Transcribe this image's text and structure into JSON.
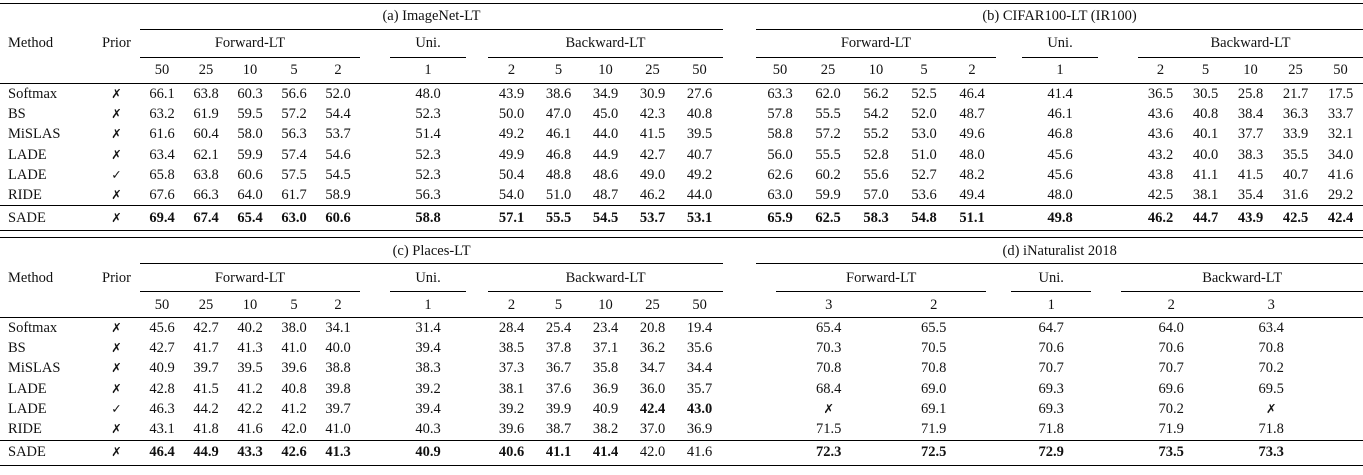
{
  "tables": [
    {
      "name": "top",
      "method_header": "Method",
      "prior_header": "Prior",
      "sections": [
        {
          "title": "(a) ImageNet-LT",
          "groups": [
            {
              "label": "Forward-LT",
              "subcols": [
                "50",
                "25",
                "10",
                "5",
                "2"
              ]
            },
            {
              "label": "Uni.",
              "subcols": [
                "1"
              ]
            },
            {
              "label": "Backward-LT",
              "subcols": [
                "2",
                "5",
                "10",
                "25",
                "50"
              ]
            }
          ]
        },
        {
          "title": "(b) CIFAR100-LT (IR100)",
          "groups": [
            {
              "label": "Forward-LT",
              "subcols": [
                "50",
                "25",
                "10",
                "5",
                "2"
              ]
            },
            {
              "label": "Uni.",
              "subcols": [
                "1"
              ]
            },
            {
              "label": "Backward-LT",
              "subcols": [
                "2",
                "5",
                "10",
                "25",
                "50"
              ]
            }
          ]
        }
      ],
      "rows": [
        {
          "method": "Softmax",
          "prior": "✗",
          "cells": [
            [
              "66.1",
              "63.8",
              "60.3",
              "56.6",
              "52.0",
              "48.0",
              "43.9",
              "38.6",
              "34.9",
              "30.9",
              "27.6"
            ],
            [
              "63.3",
              "62.0",
              "56.2",
              "52.5",
              "46.4",
              "41.4",
              "36.5",
              "30.5",
              "25.8",
              "21.7",
              "17.5"
            ]
          ],
          "bold": [
            [],
            []
          ]
        },
        {
          "method": "BS",
          "prior": "✗",
          "cells": [
            [
              "63.2",
              "61.9",
              "59.5",
              "57.2",
              "54.4",
              "52.3",
              "50.0",
              "47.0",
              "45.0",
              "42.3",
              "40.8"
            ],
            [
              "57.8",
              "55.5",
              "54.2",
              "52.0",
              "48.7",
              "46.1",
              "43.6",
              "40.8",
              "38.4",
              "36.3",
              "33.7"
            ]
          ],
          "bold": [
            [],
            []
          ]
        },
        {
          "method": "MiSLAS",
          "prior": "✗",
          "cells": [
            [
              "61.6",
              "60.4",
              "58.0",
              "56.3",
              "53.7",
              "51.4",
              "49.2",
              "46.1",
              "44.0",
              "41.5",
              "39.5"
            ],
            [
              "58.8",
              "57.2",
              "55.2",
              "53.0",
              "49.6",
              "46.8",
              "43.6",
              "40.1",
              "37.7",
              "33.9",
              "32.1"
            ]
          ],
          "bold": [
            [],
            []
          ]
        },
        {
          "method": "LADE",
          "prior": "✗",
          "cells": [
            [
              "63.4",
              "62.1",
              "59.9",
              "57.4",
              "54.6",
              "52.3",
              "49.9",
              "46.8",
              "44.9",
              "42.7",
              "40.7"
            ],
            [
              "56.0",
              "55.5",
              "52.8",
              "51.0",
              "48.0",
              "45.6",
              "43.2",
              "40.0",
              "38.3",
              "35.5",
              "34.0"
            ]
          ],
          "bold": [
            [],
            []
          ]
        },
        {
          "method": "LADE",
          "prior": "✓",
          "cells": [
            [
              "65.8",
              "63.8",
              "60.6",
              "57.5",
              "54.5",
              "52.3",
              "50.4",
              "48.8",
              "48.6",
              "49.0",
              "49.2"
            ],
            [
              "62.6",
              "60.2",
              "55.6",
              "52.7",
              "48.2",
              "45.6",
              "43.8",
              "41.1",
              "41.5",
              "40.7",
              "41.6"
            ]
          ],
          "bold": [
            [],
            []
          ]
        },
        {
          "method": "RIDE",
          "prior": "✗",
          "cells": [
            [
              "67.6",
              "66.3",
              "64.0",
              "61.7",
              "58.9",
              "56.3",
              "54.0",
              "51.0",
              "48.7",
              "46.2",
              "44.0"
            ],
            [
              "63.0",
              "59.9",
              "57.0",
              "53.6",
              "49.4",
              "48.0",
              "42.5",
              "38.1",
              "35.4",
              "31.6",
              "29.2"
            ]
          ],
          "bold": [
            [],
            []
          ]
        },
        {
          "method": "SADE",
          "prior": "✗",
          "footer": true,
          "cells": [
            [
              "69.4",
              "67.4",
              "65.4",
              "63.0",
              "60.6",
              "58.8",
              "57.1",
              "55.5",
              "54.5",
              "53.7",
              "53.1"
            ],
            [
              "65.9",
              "62.5",
              "58.3",
              "54.8",
              "51.1",
              "49.8",
              "46.2",
              "44.7",
              "43.9",
              "42.5",
              "42.4"
            ]
          ],
          "bold": [
            [
              0,
              1,
              2,
              3,
              4,
              5,
              6,
              7,
              8,
              9,
              10
            ],
            [
              0,
              1,
              2,
              3,
              4,
              5,
              6,
              7,
              8,
              9,
              10
            ]
          ]
        }
      ]
    },
    {
      "name": "bottom",
      "method_header": "Method",
      "prior_header": "Prior",
      "sections": [
        {
          "title": "(c) Places-LT",
          "groups": [
            {
              "label": "Forward-LT",
              "subcols": [
                "50",
                "25",
                "10",
                "5",
                "2"
              ]
            },
            {
              "label": "Uni.",
              "subcols": [
                "1"
              ]
            },
            {
              "label": "Backward-LT",
              "subcols": [
                "2",
                "5",
                "10",
                "25",
                "50"
              ]
            }
          ]
        },
        {
          "title": "(d) iNaturalist 2018",
          "groups": [
            {
              "label": "Forward-LT",
              "subcols": [
                "3",
                "2"
              ]
            },
            {
              "label": "Uni.",
              "subcols": [
                "1"
              ]
            },
            {
              "label": "Backward-LT",
              "subcols": [
                "2",
                "3"
              ]
            }
          ]
        }
      ],
      "rows": [
        {
          "method": "Softmax",
          "prior": "✗",
          "cells": [
            [
              "45.6",
              "42.7",
              "40.2",
              "38.0",
              "34.1",
              "31.4",
              "28.4",
              "25.4",
              "23.4",
              "20.8",
              "19.4"
            ],
            [
              "65.4",
              "65.5",
              "64.7",
              "64.0",
              "63.4"
            ]
          ],
          "bold": [
            [],
            []
          ]
        },
        {
          "method": "BS",
          "prior": "✗",
          "cells": [
            [
              "42.7",
              "41.7",
              "41.3",
              "41.0",
              "40.0",
              "39.4",
              "38.5",
              "37.8",
              "37.1",
              "36.2",
              "35.6"
            ],
            [
              "70.3",
              "70.5",
              "70.6",
              "70.6",
              "70.8"
            ]
          ],
          "bold": [
            [],
            []
          ]
        },
        {
          "method": "MiSLAS",
          "prior": "✗",
          "cells": [
            [
              "40.9",
              "39.7",
              "39.5",
              "39.6",
              "38.8",
              "38.3",
              "37.3",
              "36.7",
              "35.8",
              "34.7",
              "34.4"
            ],
            [
              "70.8",
              "70.8",
              "70.7",
              "70.7",
              "70.2"
            ]
          ],
          "bold": [
            [],
            []
          ]
        },
        {
          "method": "LADE",
          "prior": "✗",
          "cells": [
            [
              "42.8",
              "41.5",
              "41.2",
              "40.8",
              "39.8",
              "39.2",
              "38.1",
              "37.6",
              "36.9",
              "36.0",
              "35.7"
            ],
            [
              "68.4",
              "69.0",
              "69.3",
              "69.6",
              "69.5"
            ]
          ],
          "bold": [
            [],
            []
          ]
        },
        {
          "method": "LADE",
          "prior": "✓",
          "cells": [
            [
              "46.3",
              "44.2",
              "42.2",
              "41.2",
              "39.7",
              "39.4",
              "39.2",
              "39.9",
              "40.9",
              "42.4",
              "43.0"
            ],
            [
              "✗",
              "69.1",
              "69.3",
              "70.2",
              "✗"
            ]
          ],
          "bold": [
            [
              9,
              10
            ],
            []
          ]
        },
        {
          "method": "RIDE",
          "prior": "✗",
          "cells": [
            [
              "43.1",
              "41.8",
              "41.6",
              "42.0",
              "41.0",
              "40.3",
              "39.6",
              "38.7",
              "38.2",
              "37.0",
              "36.9"
            ],
            [
              "71.5",
              "71.9",
              "71.8",
              "71.9",
              "71.8"
            ]
          ],
          "bold": [
            [],
            []
          ]
        },
        {
          "method": "SADE",
          "prior": "✗",
          "footer": true,
          "cells": [
            [
              "46.4",
              "44.9",
              "43.3",
              "42.6",
              "41.3",
              "40.9",
              "40.6",
              "41.1",
              "41.4",
              "42.0",
              "41.6"
            ],
            [
              "72.3",
              "72.5",
              "72.9",
              "73.5",
              "73.3"
            ]
          ],
          "bold": [
            [
              0,
              1,
              2,
              3,
              4,
              5,
              6,
              7,
              8
            ],
            [
              0,
              1,
              2,
              3,
              4
            ]
          ]
        }
      ]
    }
  ]
}
